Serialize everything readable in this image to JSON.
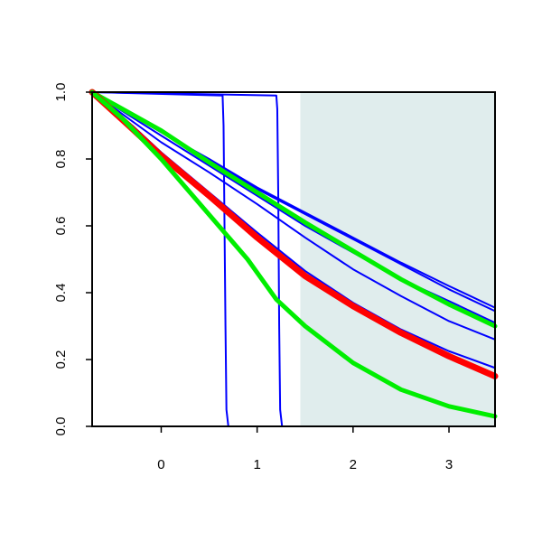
{
  "chart_data": {
    "type": "line",
    "title": "",
    "xlabel": "",
    "ylabel": "",
    "xlim": [
      -0.72,
      3.48
    ],
    "ylim": [
      0.0,
      1.0
    ],
    "x_ticks": [
      0,
      1,
      2,
      3
    ],
    "x_tick_labels": [
      "0",
      "1",
      "2",
      "3"
    ],
    "y_ticks": [
      0.0,
      0.2,
      0.4,
      0.6,
      0.8,
      1.0
    ],
    "y_tick_labels": [
      "0.0",
      "0.2",
      "0.4",
      "0.6",
      "0.8",
      "1.0"
    ],
    "grid": false,
    "legend": "none",
    "shaded_region": {
      "x_start": 1.45,
      "x_end": 3.48,
      "color": "#e0eded"
    },
    "series": [
      {
        "color": "#0000ff",
        "width": 2,
        "x": [
          -0.72,
          0.64,
          0.65,
          0.66,
          0.67,
          0.68,
          0.7,
          3.48
        ],
        "y": [
          1.0,
          0.99,
          0.9,
          0.6,
          0.3,
          0.05,
          0.0,
          0.0
        ]
      },
      {
        "color": "#0000ff",
        "width": 2,
        "x": [
          -0.72,
          1.2,
          1.21,
          1.22,
          1.23,
          1.24,
          1.26,
          3.48
        ],
        "y": [
          1.0,
          0.99,
          0.95,
          0.7,
          0.3,
          0.05,
          0.0,
          0.0
        ]
      },
      {
        "color": "#0000ff",
        "width": 2,
        "x": [
          -0.72,
          0.0,
          0.5,
          1.0,
          1.5,
          2.0,
          2.5,
          3.0,
          3.48
        ],
        "y": [
          1.0,
          0.88,
          0.8,
          0.715,
          0.64,
          0.565,
          0.49,
          0.42,
          0.355
        ]
      },
      {
        "color": "#0000ff",
        "width": 2,
        "x": [
          -0.72,
          0.0,
          0.5,
          1.0,
          1.5,
          2.0,
          2.5,
          3.0,
          3.48
        ],
        "y": [
          1.0,
          0.88,
          0.795,
          0.71,
          0.635,
          0.56,
          0.485,
          0.41,
          0.345
        ]
      },
      {
        "color": "#0000ff",
        "width": 2,
        "x": [
          -0.72,
          0.0,
          0.5,
          1.0,
          1.5,
          2.0,
          2.5,
          3.0,
          3.48
        ],
        "y": [
          1.0,
          0.87,
          0.78,
          0.69,
          0.6,
          0.52,
          0.44,
          0.375,
          0.31
        ]
      },
      {
        "color": "#0000ff",
        "width": 2,
        "x": [
          -0.72,
          0.0,
          0.5,
          1.0,
          1.5,
          2.0,
          2.5,
          3.0,
          3.48
        ],
        "y": [
          1.0,
          0.85,
          0.76,
          0.665,
          0.565,
          0.47,
          0.39,
          0.315,
          0.26
        ]
      },
      {
        "color": "#0000ff",
        "width": 2,
        "x": [
          -0.72,
          -0.3,
          0.0,
          0.5,
          1.0,
          1.5,
          2.0,
          2.5,
          3.0,
          3.48
        ],
        "y": [
          1.0,
          0.9,
          0.82,
          0.7,
          0.58,
          0.465,
          0.37,
          0.29,
          0.225,
          0.175
        ]
      },
      {
        "color": "#00ee00",
        "width": 5,
        "x": [
          -0.72,
          0.0,
          0.5,
          1.0,
          1.5,
          2.0,
          2.5,
          3.0,
          3.48
        ],
        "y": [
          1.0,
          0.885,
          0.79,
          0.7,
          0.61,
          0.525,
          0.44,
          0.365,
          0.3
        ]
      },
      {
        "color": "#ff0000",
        "width": 7,
        "x": [
          -0.72,
          -0.3,
          0.0,
          0.5,
          1.0,
          1.5,
          2.0,
          2.5,
          3.0,
          3.48
        ],
        "y": [
          1.0,
          0.89,
          0.81,
          0.69,
          0.565,
          0.45,
          0.36,
          0.28,
          0.21,
          0.15
        ]
      },
      {
        "color": "#00ee00",
        "width": 5,
        "x": [
          -0.72,
          -0.4,
          0.0,
          0.3,
          0.6,
          0.9,
          1.0,
          1.2,
          1.5,
          2.0,
          2.5,
          3.0,
          3.48
        ],
        "y": [
          1.0,
          0.92,
          0.8,
          0.7,
          0.6,
          0.5,
          0.46,
          0.38,
          0.3,
          0.19,
          0.11,
          0.06,
          0.03
        ]
      }
    ]
  }
}
